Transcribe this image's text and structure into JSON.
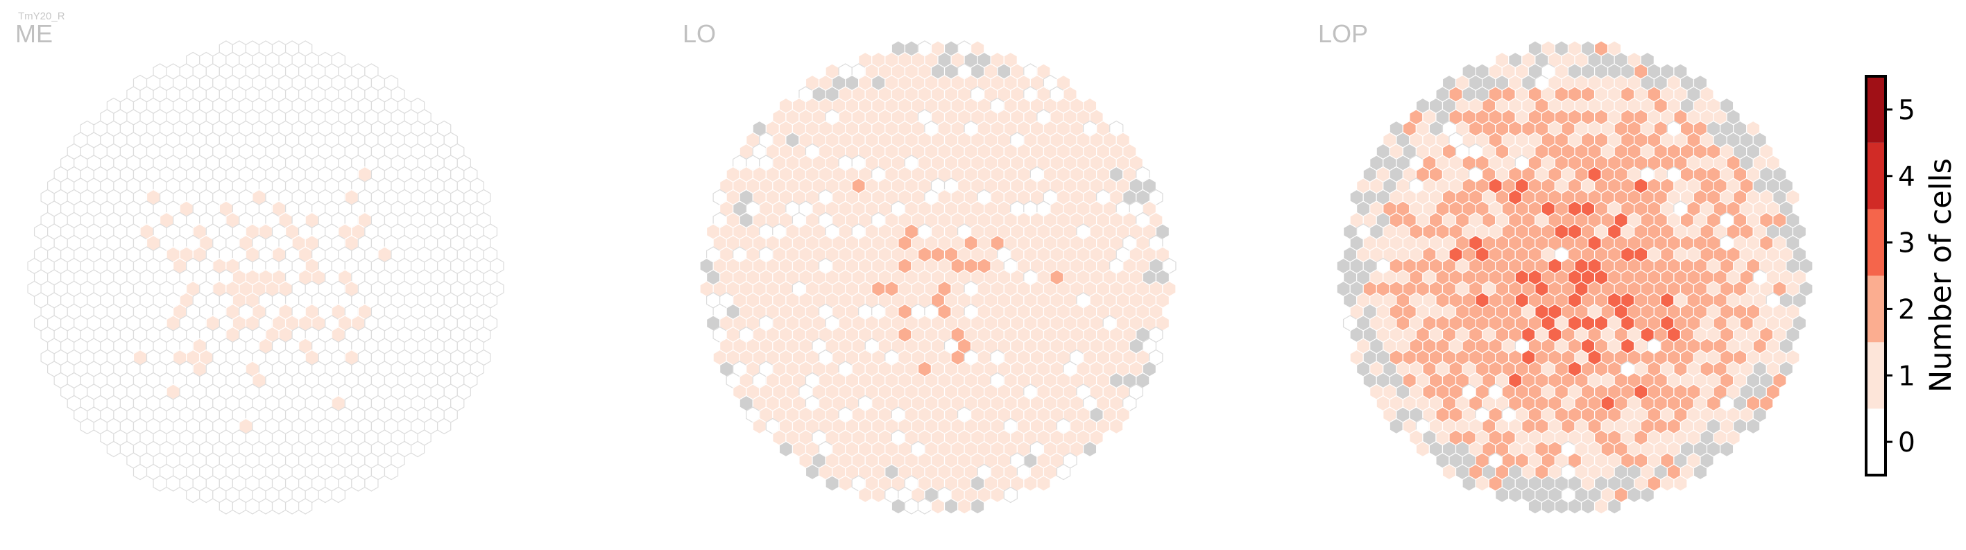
{
  "chart_data": {
    "type": "heatmap",
    "subtitle": "TmY20_R",
    "panels": [
      {
        "title": "ME",
        "seed": 11,
        "intensity": 0.55,
        "grey_rim_fraction": 0.0,
        "edge_vertical_extra": 0.0
      },
      {
        "title": "LO",
        "seed": 23,
        "intensity": 1.35,
        "grey_rim_fraction": 0.16,
        "edge_vertical_extra": 0.0
      },
      {
        "title": "LOP",
        "seed": 37,
        "intensity": 2.55,
        "grey_rim_fraction": 0.55,
        "edge_vertical_extra": 0.0
      }
    ],
    "colorbar": {
      "label": "Number of cells",
      "ticks": [
        "0",
        "1",
        "2",
        "3",
        "4",
        "5"
      ],
      "range": [
        0,
        5
      ],
      "bins": [
        {
          "from": 0,
          "to": 0.5,
          "color": "#ffffff"
        },
        {
          "from": 0.5,
          "to": 1.5,
          "color": "#fde5d9"
        },
        {
          "from": 1.5,
          "to": 2.5,
          "color": "#fbad90"
        },
        {
          "from": 2.5,
          "to": 3.5,
          "color": "#f5654b"
        },
        {
          "from": 3.5,
          "to": 4.5,
          "color": "#d12b26"
        },
        {
          "from": 4.5,
          "to": 5.5,
          "color": "#a01016"
        }
      ]
    },
    "missing_color": "#cfcfcf",
    "empty_edge_color": "#dcdcdc",
    "filled_edge_color": "#ffffff"
  }
}
